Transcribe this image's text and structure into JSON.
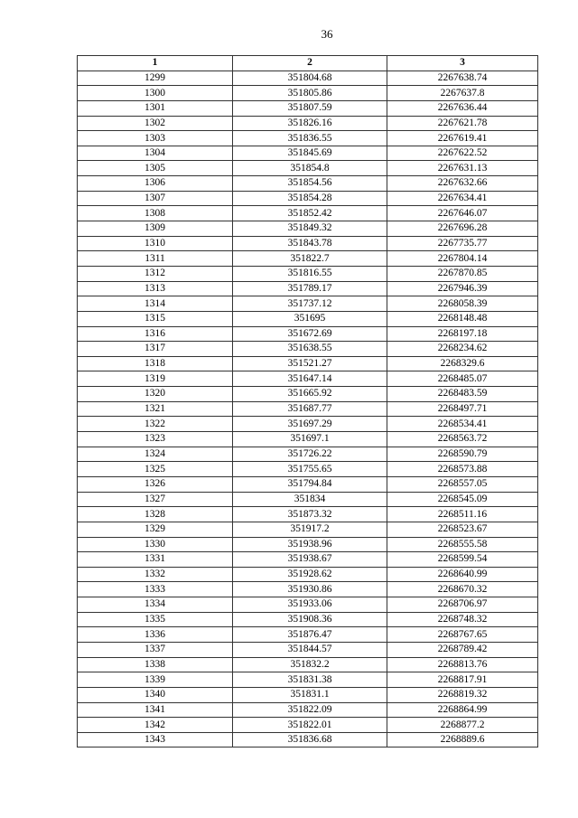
{
  "page_number": "36",
  "table": {
    "headers": [
      "1",
      "2",
      "3"
    ],
    "rows": [
      [
        "1299",
        "351804.68",
        "2267638.74"
      ],
      [
        "1300",
        "351805.86",
        "2267637.8"
      ],
      [
        "1301",
        "351807.59",
        "2267636.44"
      ],
      [
        "1302",
        "351826.16",
        "2267621.78"
      ],
      [
        "1303",
        "351836.55",
        "2267619.41"
      ],
      [
        "1304",
        "351845.69",
        "2267622.52"
      ],
      [
        "1305",
        "351854.8",
        "2267631.13"
      ],
      [
        "1306",
        "351854.56",
        "2267632.66"
      ],
      [
        "1307",
        "351854.28",
        "2267634.41"
      ],
      [
        "1308",
        "351852.42",
        "2267646.07"
      ],
      [
        "1309",
        "351849.32",
        "2267696.28"
      ],
      [
        "1310",
        "351843.78",
        "2267735.77"
      ],
      [
        "1311",
        "351822.7",
        "2267804.14"
      ],
      [
        "1312",
        "351816.55",
        "2267870.85"
      ],
      [
        "1313",
        "351789.17",
        "2267946.39"
      ],
      [
        "1314",
        "351737.12",
        "2268058.39"
      ],
      [
        "1315",
        "351695",
        "2268148.48"
      ],
      [
        "1316",
        "351672.69",
        "2268197.18"
      ],
      [
        "1317",
        "351638.55",
        "2268234.62"
      ],
      [
        "1318",
        "351521.27",
        "2268329.6"
      ],
      [
        "1319",
        "351647.14",
        "2268485.07"
      ],
      [
        "1320",
        "351665.92",
        "2268483.59"
      ],
      [
        "1321",
        "351687.77",
        "2268497.71"
      ],
      [
        "1322",
        "351697.29",
        "2268534.41"
      ],
      [
        "1323",
        "351697.1",
        "2268563.72"
      ],
      [
        "1324",
        "351726.22",
        "2268590.79"
      ],
      [
        "1325",
        "351755.65",
        "2268573.88"
      ],
      [
        "1326",
        "351794.84",
        "2268557.05"
      ],
      [
        "1327",
        "351834",
        "2268545.09"
      ],
      [
        "1328",
        "351873.32",
        "2268511.16"
      ],
      [
        "1329",
        "351917.2",
        "2268523.67"
      ],
      [
        "1330",
        "351938.96",
        "2268555.58"
      ],
      [
        "1331",
        "351938.67",
        "2268599.54"
      ],
      [
        "1332",
        "351928.62",
        "2268640.99"
      ],
      [
        "1333",
        "351930.86",
        "2268670.32"
      ],
      [
        "1334",
        "351933.06",
        "2268706.97"
      ],
      [
        "1335",
        "351908.36",
        "2268748.32"
      ],
      [
        "1336",
        "351876.47",
        "2268767.65"
      ],
      [
        "1337",
        "351844.57",
        "2268789.42"
      ],
      [
        "1338",
        "351832.2",
        "2268813.76"
      ],
      [
        "1339",
        "351831.38",
        "2268817.91"
      ],
      [
        "1340",
        "351831.1",
        "2268819.32"
      ],
      [
        "1341",
        "351822.09",
        "2268864.99"
      ],
      [
        "1342",
        "351822.01",
        "2268877.2"
      ],
      [
        "1343",
        "351836.68",
        "2268889.6"
      ]
    ]
  }
}
